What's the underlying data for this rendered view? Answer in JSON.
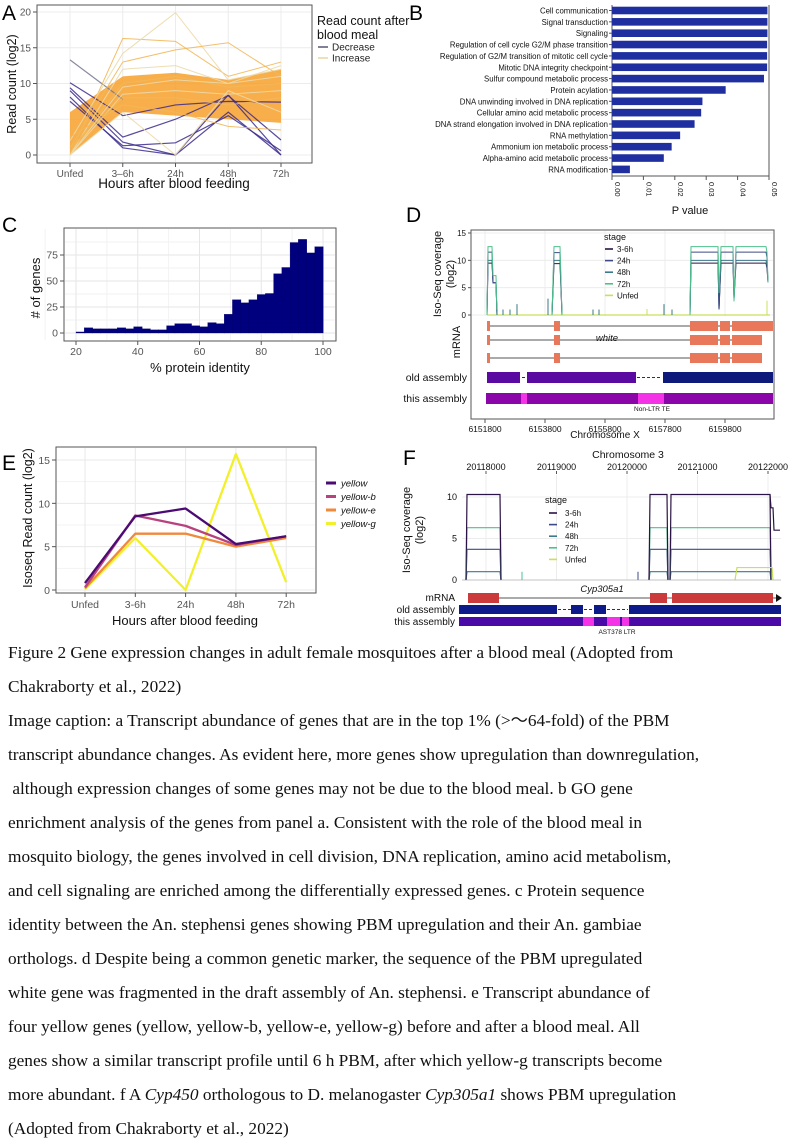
{
  "figure": {
    "panels": [
      "A",
      "B",
      "C",
      "D",
      "E",
      "F"
    ]
  },
  "chart_data": [
    {
      "id": "A",
      "type": "line",
      "title": "",
      "xlabel": "Hours after blood feeding",
      "ylabel": "Read count (log2)",
      "categories": [
        "Unfed",
        "3–6h",
        "24h",
        "48h",
        "72h"
      ],
      "ylim": [
        0,
        20
      ],
      "yticks": [
        0,
        5,
        10,
        15,
        20
      ],
      "legend": {
        "title": "Read count after blood meal",
        "entries": [
          "Decrease",
          "Increase"
        ],
        "position": "right"
      },
      "colors": {
        "Decrease": "#3b2a8c",
        "Increase": "#f7a02a",
        "Increase_light": "#ecd9a8"
      },
      "series": [
        {
          "name": "Decrease",
          "values": [
            13.3,
            7.8,
            null,
            null,
            null
          ]
        },
        {
          "name": "Decrease",
          "values": [
            10.1,
            5.5,
            7.0,
            7.5,
            7.4
          ]
        },
        {
          "name": "Decrease",
          "values": [
            9.4,
            2.5,
            5.0,
            8.3,
            2.1
          ]
        },
        {
          "name": "Decrease",
          "values": [
            9.0,
            1.8,
            0.0,
            6.0,
            0.0
          ]
        },
        {
          "name": "Decrease",
          "values": [
            8.1,
            1.0,
            0.0,
            8.4,
            0.0
          ]
        },
        {
          "name": "Decrease",
          "values": [
            7.5,
            1.3,
            1.7,
            5.5,
            0.6
          ]
        },
        {
          "name": "Increase",
          "values": [
            0.0,
            16.3,
            15.9,
            11.0,
            13.0
          ]
        },
        {
          "name": "Increase",
          "values": [
            2.0,
            14.2,
            19.9,
            10.5,
            12.0
          ]
        },
        {
          "name": "Increase",
          "values": [
            1.0,
            13.0,
            14.7,
            15.7,
            11.0
          ]
        },
        {
          "name": "Increase",
          "values": [
            0.0,
            12.0,
            12.5,
            10.0,
            12.5
          ]
        },
        {
          "name": "Increase",
          "values": [
            0.5,
            10.0,
            11.0,
            9.5,
            10.0
          ]
        },
        {
          "name": "Increase",
          "values": [
            0.0,
            8.5,
            9.0,
            8.5,
            9.0
          ]
        },
        {
          "name": "Increase",
          "values": [
            1.0,
            8.0,
            8.0,
            7.0,
            8.0
          ]
        },
        {
          "name": "Increase",
          "values": [
            0.0,
            6.0,
            0.0,
            9.0,
            6.0
          ]
        },
        {
          "name": "Increase",
          "values": [
            2.5,
            7.0,
            6.0,
            4.0,
            3.5
          ]
        },
        {
          "name": "Increase",
          "values": [
            0.0,
            9.5,
            10.5,
            10.0,
            11.0
          ]
        }
      ]
    },
    {
      "id": "B",
      "type": "bar",
      "orientation": "horizontal",
      "title": "",
      "xlabel": "P value",
      "ylabel": "",
      "categories": [
        "Cell communication",
        "Signal transduction",
        "Signaling",
        "Regulation of cell cycle G2/M phase transition",
        "Regulation of G2/M transition of mitotic cell cycle",
        "Mitotic DNA integrity checkpoint",
        "Sulfur compound metabolic process",
        "Protein acylation",
        "DNA unwinding involved in DNA replication",
        "Cellular amino acid metabolic process",
        "DNA strand elongation involved in DNA replication",
        "RNA methylation",
        "Ammonium ion metabolic process",
        "Alpha-amino acid metabolic process",
        "RNA modification"
      ],
      "values": [
        0.0495,
        0.0495,
        0.0495,
        0.0494,
        0.0494,
        0.0494,
        0.0484,
        0.0362,
        0.0288,
        0.0284,
        0.0263,
        0.0217,
        0.019,
        0.0165,
        0.0057
      ],
      "xlim": [
        0,
        0.05
      ],
      "xticks": [
        "0.00",
        "0.01",
        "0.02",
        "0.03",
        "0.04",
        "0.05"
      ],
      "color": "#1f2fa0"
    },
    {
      "id": "C",
      "type": "bar",
      "title": "",
      "xlabel": "% protein identity",
      "ylabel": "# of genes",
      "bin_start": 20,
      "bin_width": 2.7,
      "values": [
        1,
        5,
        4,
        4,
        4,
        5,
        4,
        6,
        4,
        3,
        3,
        7,
        9,
        9,
        7,
        6,
        10,
        9,
        18,
        32,
        29,
        32,
        37,
        38,
        57,
        63,
        87,
        90,
        77,
        83
      ],
      "xlim": [
        16,
        104
      ],
      "ylim": [
        0,
        92
      ],
      "xticks": [
        20,
        40,
        60,
        80,
        100
      ],
      "yticks": [
        0,
        25,
        50,
        75
      ],
      "color": "#00007f"
    },
    {
      "id": "D",
      "type": "line",
      "title": "",
      "xlabel": "Chromosome X",
      "ylabel": "Iso-Seq coverage (log2)",
      "xticks": [
        "6151800",
        "6153800",
        "6155800",
        "6157800",
        "6159800"
      ],
      "yticks": [
        0,
        5,
        10,
        15
      ],
      "ylim": [
        0,
        15
      ],
      "legend": {
        "title": "stage",
        "entries": [
          "3-6h",
          "24h",
          "48h",
          "72h",
          "Unfed"
        ],
        "position": "top-center"
      },
      "stage_colors": {
        "3-6h": "#2b1445",
        "24h": "#3d4a86",
        "48h": "#3a7a8a",
        "72h": "#4fc08d",
        "Unfed": "#c8e05a"
      },
      "exon_levels": {
        "3-6h": [
          9.5,
          9.4,
          9.5
        ],
        "24h": [
          11.5,
          11.4,
          11.5
        ],
        "48h": [
          10.0,
          10.0,
          10.0
        ],
        "72h": [
          12.5,
          12.5,
          12.5
        ]
      },
      "tracks": {
        "mrna_label": "mRNA",
        "gene_name": "white",
        "old_assembly_label": "old assembly",
        "this_assembly_label": "this assembly",
        "te_label": "Non-LTR TE",
        "mrna_color": "#e9785a",
        "old_color_1": "#5a0aa0",
        "old_color_2": "#0d1a7a",
        "this_color": "#8a06a8",
        "te_color": "#f533e6"
      }
    },
    {
      "id": "E",
      "type": "line",
      "title": "",
      "xlabel": "Hours after blood feeding",
      "ylabel": "Isoseq Read count (log2)",
      "categories": [
        "Unfed",
        "3-6h",
        "24h",
        "48h",
        "72h"
      ],
      "ylim": [
        0,
        16
      ],
      "yticks": [
        0,
        5,
        10,
        15
      ],
      "legend": {
        "position": "right"
      },
      "series": [
        {
          "name": "yellow",
          "values": [
            0.8,
            8.5,
            9.4,
            5.3,
            6.2
          ],
          "color": "#4b0b73"
        },
        {
          "name": "yellow-b",
          "values": [
            0.3,
            8.6,
            7.4,
            5.2,
            6.2
          ],
          "color": "#b8427e"
        },
        {
          "name": "yellow-e",
          "values": [
            0.2,
            6.5,
            6.5,
            5.0,
            6.0
          ],
          "color": "#ef8a3c"
        },
        {
          "name": "yellow-g",
          "values": [
            0.1,
            6.0,
            0.0,
            15.7,
            0.9
          ],
          "color": "#f2f02a"
        }
      ]
    },
    {
      "id": "F",
      "type": "line",
      "title": "Chromosome 3",
      "xlabel": "",
      "ylabel": "Iso-Seq coverage (log2)",
      "xticks": [
        "20118000",
        "20119000",
        "20120000",
        "20121000",
        "20122000"
      ],
      "yticks": [
        0,
        5,
        10
      ],
      "ylim": [
        0,
        12.5
      ],
      "legend": {
        "title": "stage",
        "entries": [
          "3-6h",
          "24h",
          "48h",
          "72h",
          "Unfed"
        ],
        "position": "top-center"
      },
      "exon_levels": {
        "3-6h": 10.3,
        "24h": 3.7,
        "48h": 1.0,
        "72h": 6.3,
        "Unfed": 1.5
      },
      "tracks": {
        "mrna_label": "mRNA",
        "gene_name": "Cyp305a1",
        "old_assembly_label": "old assembly",
        "this_assembly_label": "this assembly",
        "te_label": "AST378 LTR",
        "mrna_color": "#cc3b3b",
        "old_color": "#0d1a8a",
        "this_color": "#4a0aa8",
        "te_color": "#f533e6"
      }
    }
  ],
  "caption": {
    "title_lines": [
      "Figure 2 Gene expression changes in adult female mosquitoes after a blood meal (Adopted from",
      "Chakraborty et al., 2022)"
    ],
    "body_lines": [
      "Image caption: a Transcript abundance of genes that are in the top 1% (>～64-fold) of the PBM",
      "transcript abundance changes. As evident here, more genes show upregulation than downregulation,",
      " although expression changes of some genes may not be due to the blood meal. b GO gene",
      "enrichment analysis of the genes from panel a. Consistent with the role of the blood meal in",
      "mosquito biology, the genes involved in cell division, DNA replication, amino acid metabolism,",
      "and cell signaling are enriched among the differentially expressed genes. c Protein sequence",
      "identity between the An. stephensi genes showing PBM upregulation and their An. gambiae",
      "orthologs. d Despite being a common genetic marker, the sequence of the PBM upregulated",
      "white gene was fragmented in the draft assembly of An. stephensi. e Transcript abundance of",
      "four yellow genes (yellow, yellow-b, yellow-e, yellow-g) before and after a blood meal. All",
      "genes show a similar transcript profile until 6 h PBM, after which yellow-g transcripts become"
    ],
    "last_line_parts": {
      "p1": "more abundant. f A ",
      "i1": "Cyp450",
      "p2": " orthologous to D. melanogaster ",
      "i2": "Cyp305a1",
      "p3": " shows PBM upregulation"
    },
    "final_line": "(Adopted from Chakraborty et al., 2022)"
  }
}
